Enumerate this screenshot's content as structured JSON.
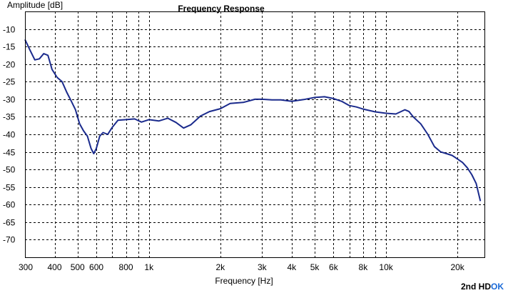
{
  "chart_data": {
    "type": "line",
    "title": "Frequency Response",
    "xlabel": "Frequency [Hz]",
    "ylabel": "Amplitude [dB]",
    "xscale": "log",
    "xlim": [
      300,
      26000
    ],
    "ylim": [
      -75,
      -5
    ],
    "grid": true,
    "y_ticks": [
      -10,
      -15,
      -20,
      -25,
      -30,
      -35,
      -40,
      -45,
      -50,
      -55,
      -60,
      -65,
      -70
    ],
    "x_ticks": [
      {
        "value": 300,
        "label": "300"
      },
      {
        "value": 400,
        "label": "400"
      },
      {
        "value": 500,
        "label": "500"
      },
      {
        "value": 600,
        "label": "600"
      },
      {
        "value": 800,
        "label": "800"
      },
      {
        "value": 1000,
        "label": "1k"
      },
      {
        "value": 2000,
        "label": "2k"
      },
      {
        "value": 3000,
        "label": "3k"
      },
      {
        "value": 4000,
        "label": "4k"
      },
      {
        "value": 5000,
        "label": "5k"
      },
      {
        "value": 6000,
        "label": "6k"
      },
      {
        "value": 8000,
        "label": "8k"
      },
      {
        "value": 10000,
        "label": "10k"
      },
      {
        "value": 20000,
        "label": "20k"
      }
    ],
    "x_minor_grid": [
      700,
      900,
      7000,
      9000
    ],
    "series": [
      {
        "color": "#1a2a8c",
        "points": [
          [
            300,
            -13
          ],
          [
            315,
            -16
          ],
          [
            330,
            -18.8
          ],
          [
            345,
            -18.5
          ],
          [
            360,
            -17
          ],
          [
            375,
            -17.5
          ],
          [
            390,
            -21.5
          ],
          [
            410,
            -23.8
          ],
          [
            430,
            -25
          ],
          [
            450,
            -28
          ],
          [
            470,
            -30.5
          ],
          [
            490,
            -33
          ],
          [
            510,
            -37
          ],
          [
            530,
            -39
          ],
          [
            550,
            -40.5
          ],
          [
            570,
            -44
          ],
          [
            585,
            -45.5
          ],
          [
            600,
            -44
          ],
          [
            620,
            -40.5
          ],
          [
            640,
            -39.5
          ],
          [
            670,
            -40
          ],
          [
            700,
            -38
          ],
          [
            740,
            -36
          ],
          [
            800,
            -35.8
          ],
          [
            870,
            -35.6
          ],
          [
            930,
            -36.5
          ],
          [
            1000,
            -35.8
          ],
          [
            1100,
            -36.2
          ],
          [
            1200,
            -35.4
          ],
          [
            1300,
            -36.6
          ],
          [
            1400,
            -38.2
          ],
          [
            1500,
            -37.3
          ],
          [
            1650,
            -34.8
          ],
          [
            1800,
            -33.5
          ],
          [
            2000,
            -32.7
          ],
          [
            2200,
            -31.2
          ],
          [
            2500,
            -30.9
          ],
          [
            2800,
            -30
          ],
          [
            3000,
            -30
          ],
          [
            3300,
            -30.2
          ],
          [
            3600,
            -30.2
          ],
          [
            4000,
            -30.6
          ],
          [
            4500,
            -30.1
          ],
          [
            5000,
            -29.5
          ],
          [
            5500,
            -29.3
          ],
          [
            6000,
            -29.8
          ],
          [
            6500,
            -30.6
          ],
          [
            7000,
            -31.8
          ],
          [
            7500,
            -32.2
          ],
          [
            8000,
            -32.8
          ],
          [
            9000,
            -33.6
          ],
          [
            10000,
            -34
          ],
          [
            11000,
            -34.2
          ],
          [
            12000,
            -33
          ],
          [
            12500,
            -33.5
          ],
          [
            13000,
            -35
          ],
          [
            14000,
            -37
          ],
          [
            15000,
            -40
          ],
          [
            16000,
            -43.5
          ],
          [
            17000,
            -45
          ],
          [
            18000,
            -45.5
          ],
          [
            19000,
            -46
          ],
          [
            20000,
            -47
          ],
          [
            21000,
            -48
          ],
          [
            22000,
            -49.5
          ],
          [
            23000,
            -51.5
          ],
          [
            24000,
            -54
          ],
          [
            25000,
            -59
          ]
        ]
      }
    ]
  },
  "footer": {
    "mode_label": "2nd HD",
    "status_label": "OK",
    "status_color": "#1a6ad8"
  }
}
